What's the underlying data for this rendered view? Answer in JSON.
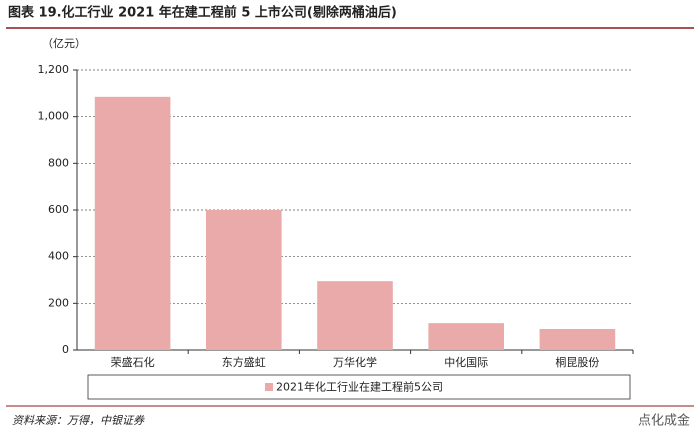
{
  "chart_data": {
    "type": "bar",
    "title": "图表 19.化工行业 2021 年在建工程前 5 上市公司(剔除两桶油后)",
    "y_label": "（亿元）",
    "categories": [
      "荣盛石化",
      "东方盛虹",
      "万华化学",
      "中化国际",
      "桐昆股份"
    ],
    "series": [
      {
        "name": "2021年化工行业在建工程前5公司",
        "color": "#e9aaa9",
        "values": [
          1085,
          600,
          295,
          115,
          90
        ]
      }
    ],
    "ylim": [
      0,
      1200
    ],
    "yticks": [
      0,
      200,
      400,
      600,
      800,
      {
        "value": 1000,
        "label": "1,000"
      },
      {
        "value": 1200,
        "label": "1,200"
      }
    ],
    "grid": true,
    "source": "资料来源：万得，中银证券",
    "watermark": "点化成金"
  }
}
